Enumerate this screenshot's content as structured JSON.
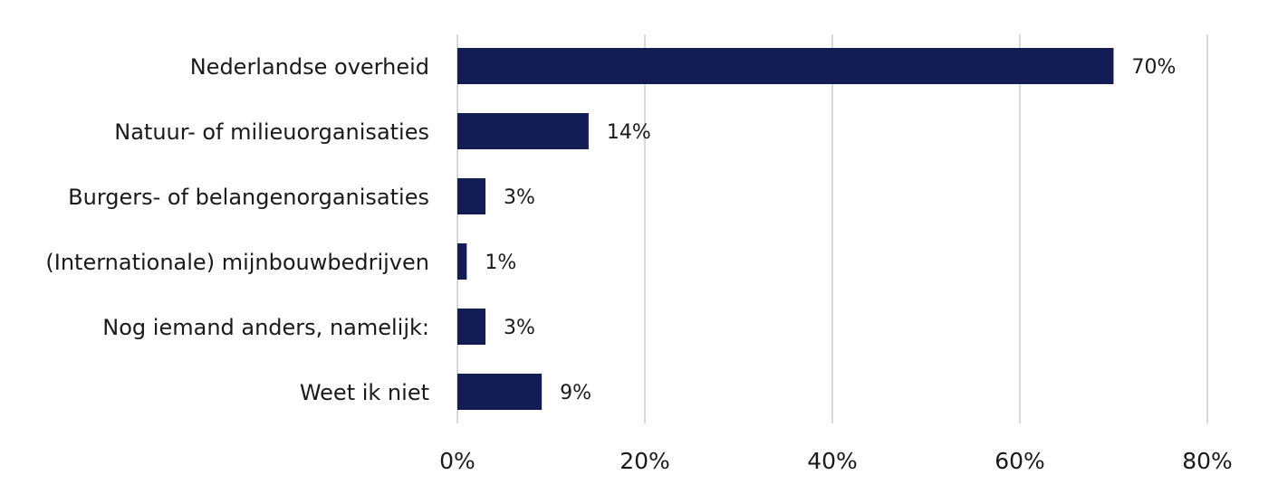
{
  "chart_data": {
    "type": "bar",
    "orientation": "horizontal",
    "categories": [
      "Nederlandse overheid",
      "Natuur- of milieuorganisaties",
      "Burgers- of belangenorganisaties",
      "(Internationale) mijnbouwbedrijven",
      "Nog iemand anders, namelijk:",
      "Weet ik niet"
    ],
    "values": [
      70,
      14,
      3,
      1,
      3,
      9
    ],
    "value_labels": [
      "70%",
      "14%",
      "3%",
      "1%",
      "3%",
      "9%"
    ],
    "xlim": [
      0,
      80
    ],
    "xticks": [
      0,
      20,
      40,
      60,
      80
    ],
    "xtick_labels": [
      "0%",
      "20%",
      "40%",
      "60%",
      "80%"
    ],
    "title": "",
    "xlabel": "",
    "ylabel": "",
    "grid": "vertical",
    "legend": "none",
    "colors": {
      "bar": "#141c55",
      "grid": "#d9d9d9",
      "text": "#1a1a1a"
    }
  }
}
